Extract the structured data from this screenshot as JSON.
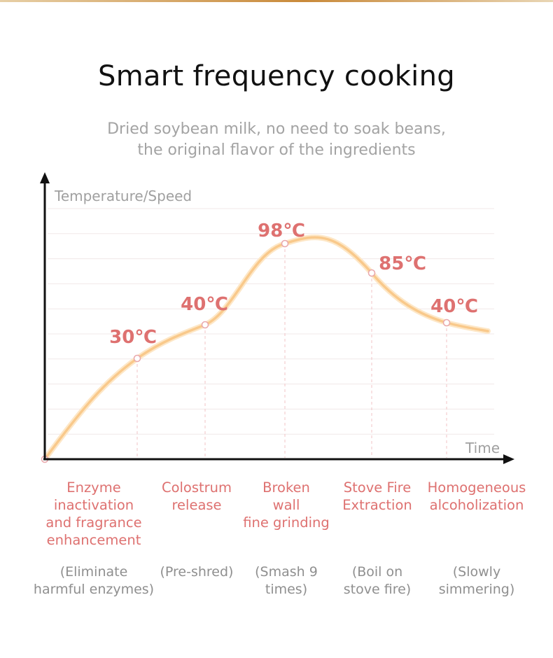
{
  "header": {
    "title": "Smart frequency cooking",
    "subtitle_lines": [
      "Dried soybean milk, no need to soak beans,",
      "the original flavor of the ingredients"
    ]
  },
  "colors": {
    "curve": "#f9c98b",
    "label": "#de7170",
    "axis": "#111111",
    "grid": "#f1e8e8",
    "guide": "#f0c3c6"
  },
  "chart_data": {
    "type": "line",
    "ylabel": "Temperature/Speed",
    "xlabel": "Time",
    "grid": true,
    "points": [
      {
        "label": "30℃"
      },
      {
        "label": "40℃"
      },
      {
        "label": "98℃"
      },
      {
        "label": "85℃"
      },
      {
        "label": "40℃"
      }
    ],
    "stages": [
      {
        "name": [
          "Enzyme",
          "inactivation",
          "and fragrance",
          "enhancement"
        ],
        "note": [
          "(Eliminate",
          "harmful enzymes)"
        ]
      },
      {
        "name": [
          "Colostrum",
          "release"
        ],
        "note": [
          "(Pre-shred)"
        ]
      },
      {
        "name": [
          "Broken",
          "wall",
          "fine grinding"
        ],
        "note": [
          "(Smash 9",
          "times)"
        ]
      },
      {
        "name": [
          "Stove Fire",
          "Extraction"
        ],
        "note": [
          "(Boil on",
          "stove fire)"
        ]
      },
      {
        "name": [
          "Homogeneous",
          "alcoholization"
        ],
        "note": [
          "(Slowly",
          "simmering)"
        ]
      }
    ]
  }
}
